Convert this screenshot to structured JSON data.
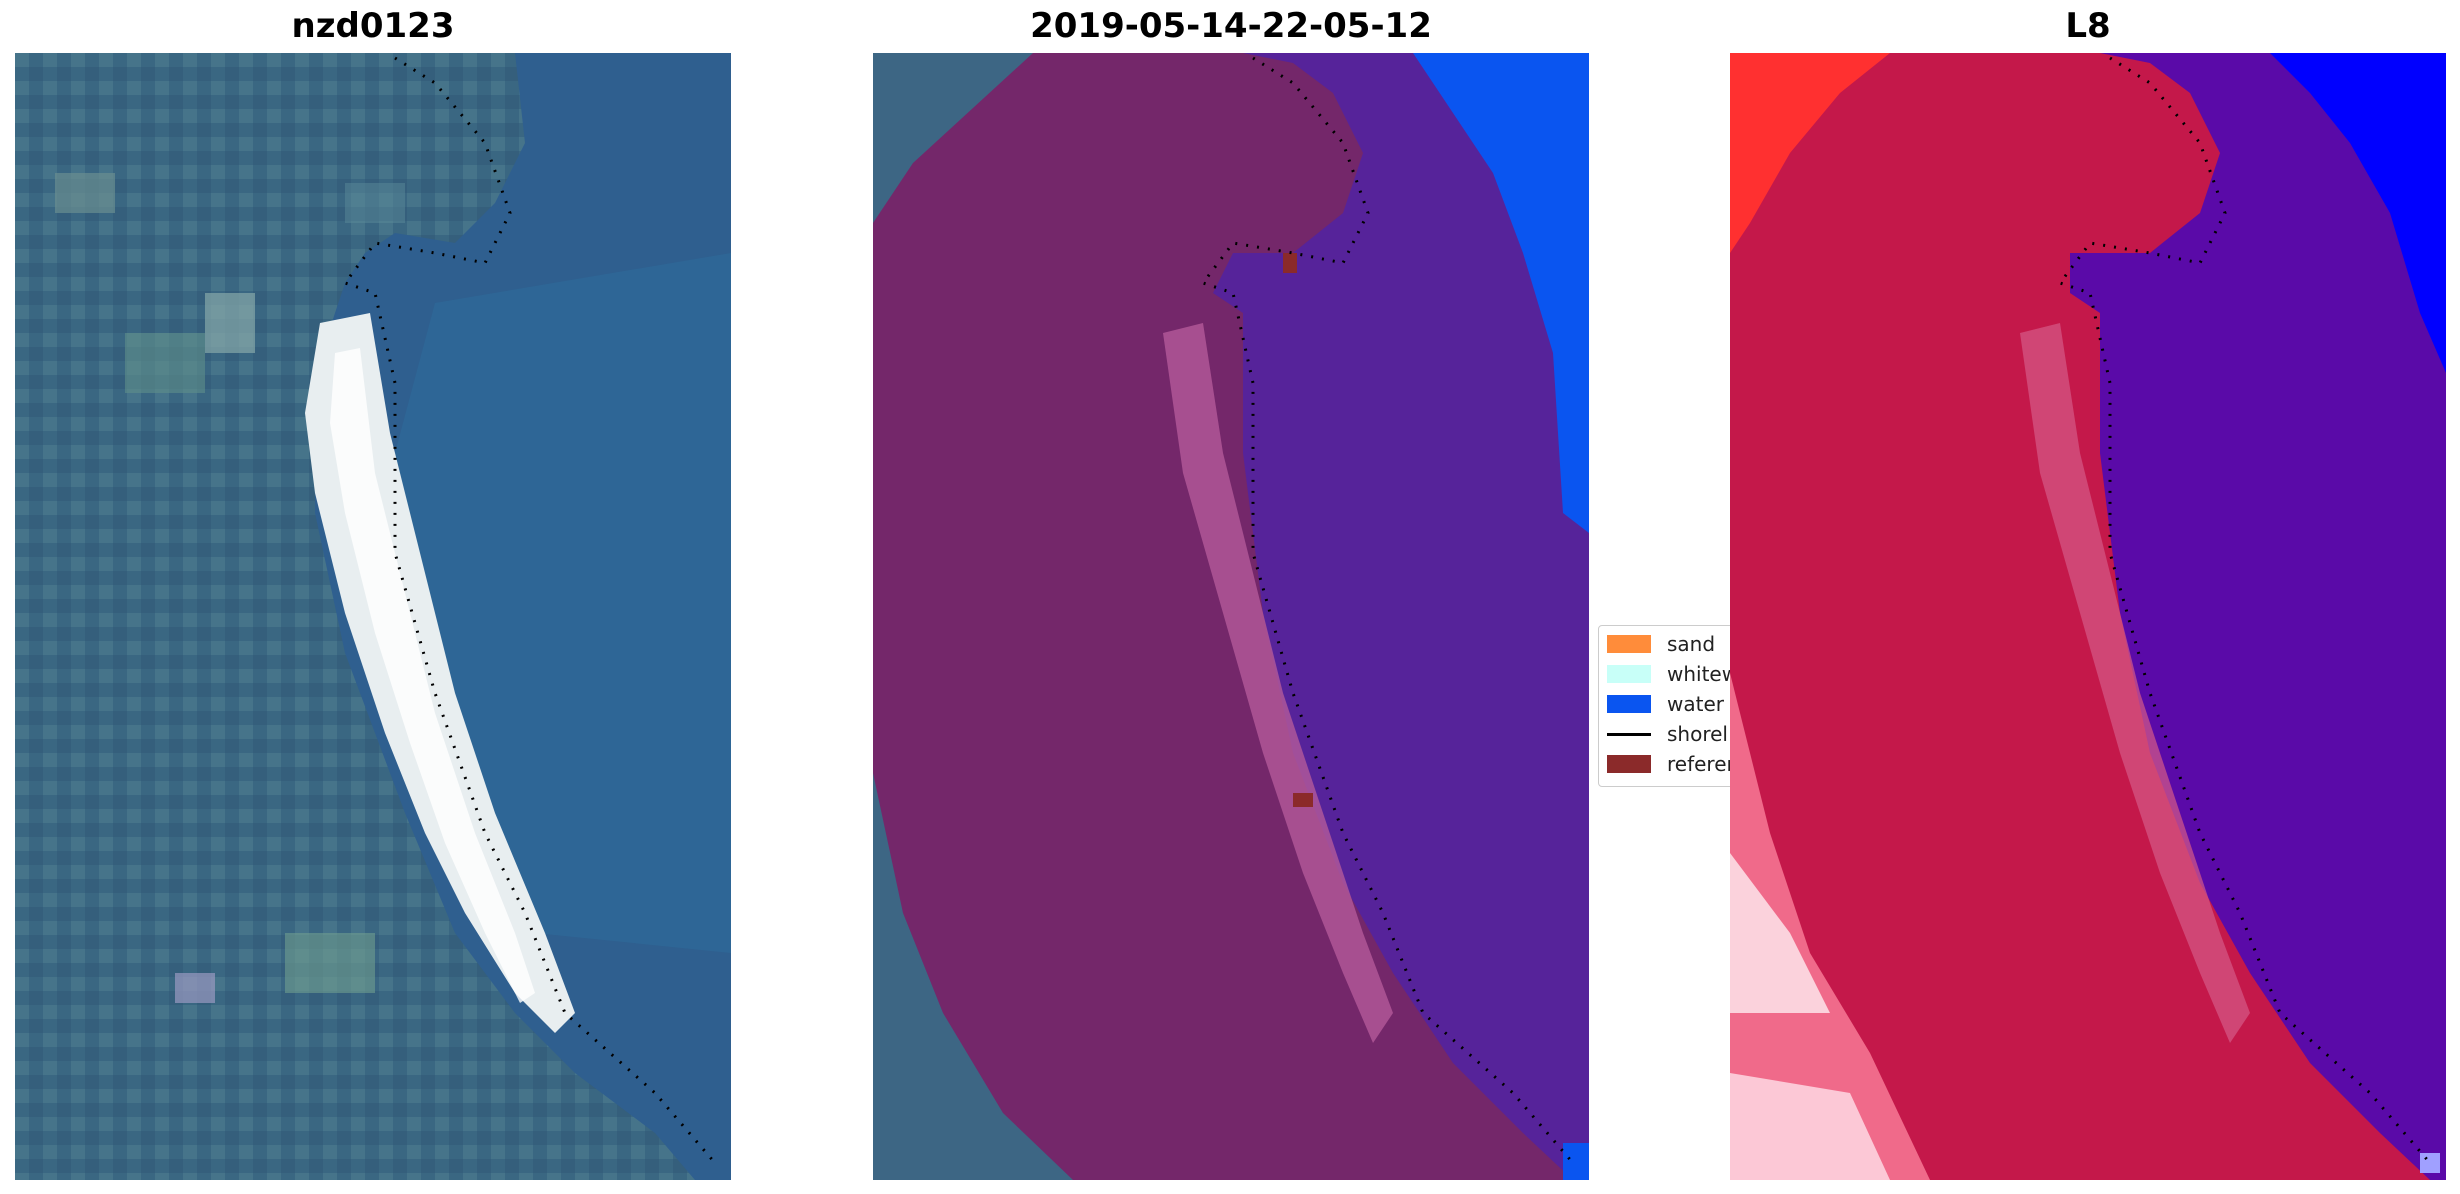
{
  "panels": [
    {
      "title": "nzd0123"
    },
    {
      "title": "2019-05-14-22-05-12"
    },
    {
      "title": "L8"
    }
  ],
  "legend": {
    "items": [
      {
        "label": "sand",
        "color": "#ff8c3a"
      },
      {
        "label": "whitew",
        "color": "#c8fff8"
      },
      {
        "label": "water",
        "color": "#0a55f0"
      },
      {
        "label": "shorel",
        "color": "#000000"
      },
      {
        "label": "referer",
        "color": "#8b2a2a"
      }
    ]
  },
  "colors": {
    "rgb_water": "#2f5f8f",
    "rgb_land": "#3f6a80",
    "rgb_sand": "#e8eef0",
    "class_land": "#74276a",
    "class_water": "#56239a",
    "class_water_edge": "#0a55f0",
    "mndwi_land": "#c4184a",
    "mndwi_water": "#5a0aa8",
    "mndwi_edge": "#ff3030"
  }
}
